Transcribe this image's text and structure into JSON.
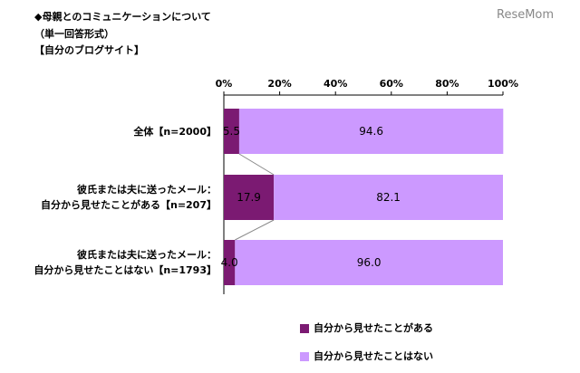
{
  "title_lines": [
    "◆母親とのコミュニケーションについて",
    "（単一回答形式）",
    "【自分のブログサイト】"
  ],
  "watermark": "ReseMom",
  "chart_data": {
    "type": "stacked-barh",
    "categories": [
      "全体【n=2000】",
      "彼氏または夫に送ったメール：\n自分から見せたことがある【n=207】",
      "彼氏または夫に送ったメール：\n自分から見せたことはない【n=1793】"
    ],
    "series": [
      {
        "name": "自分から見せたことがある",
        "color": "#7b1a72",
        "values": [
          5.5,
          17.9,
          4.0
        ],
        "value_labels": [
          "5.5",
          "17.9",
          "4.0"
        ]
      },
      {
        "name": "自分から見せたことはない",
        "color": "#cc99ff",
        "values": [
          94.6,
          82.1,
          96.0
        ],
        "value_labels": [
          "94.6",
          "82.1",
          "96.0"
        ]
      }
    ],
    "xlim": [
      0,
      100
    ],
    "xticks": [
      {
        "value": 0,
        "label": "0%"
      },
      {
        "value": 20,
        "label": "20%"
      },
      {
        "value": 40,
        "label": "40%"
      },
      {
        "value": 60,
        "label": "60%"
      },
      {
        "value": 80,
        "label": "80%"
      },
      {
        "value": 100,
        "label": "100%"
      }
    ],
    "legend": "bottom"
  }
}
